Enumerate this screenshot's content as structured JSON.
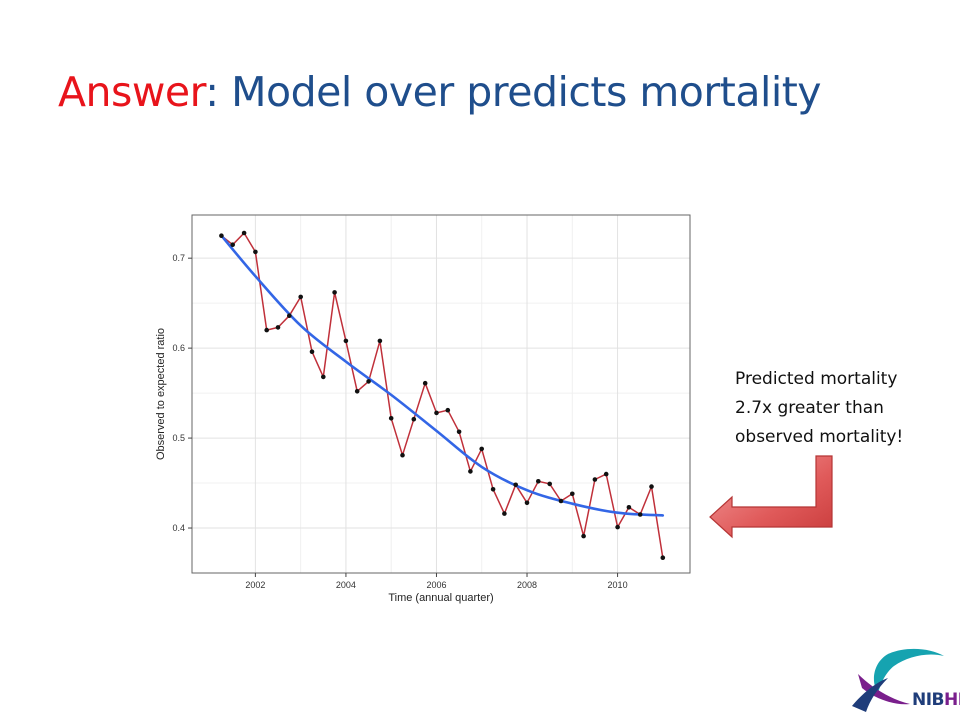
{
  "title": {
    "answer": "Answer",
    "rest": ": Model over predicts mortality"
  },
  "callout": {
    "lines": [
      "Predicted mortality",
      "2.7x greater than",
      "observed mortality!"
    ]
  },
  "logo": {
    "nib": "NIB",
    "hi": "HI"
  },
  "colors": {
    "title_answer": "#e8141b",
    "title_rest": "#1f4e8c",
    "series_line": "#c0303a",
    "points": "#111111",
    "trend": "#3366e6",
    "arrow": "#e05a5a"
  },
  "icons": {
    "callout_arrow": "bent-arrow-left-icon",
    "logo": "nibhi-swoosh-icon"
  },
  "chart_data": {
    "type": "line",
    "xlabel": "Time (annual quarter)",
    "ylabel": "Observed to expected ratio",
    "xlim": [
      2000.6,
      2011.6
    ],
    "ylim": [
      0.35,
      0.748
    ],
    "xticks": [
      2002,
      2004,
      2006,
      2008,
      2010
    ],
    "yticks": [
      0.4,
      0.5,
      0.6,
      0.7
    ],
    "grid": true,
    "series": [
      {
        "style": "line+points",
        "x": [
          2001.25,
          2001.5,
          2001.75,
          2002.0,
          2002.25,
          2002.5,
          2002.75,
          2003.0,
          2003.25,
          2003.5,
          2003.75,
          2004.0,
          2004.25,
          2004.5,
          2004.75,
          2005.0,
          2005.25,
          2005.5,
          2005.75,
          2006.0,
          2006.25,
          2006.5,
          2006.75,
          2007.0,
          2007.25,
          2007.5,
          2007.75,
          2008.0,
          2008.25,
          2008.5,
          2008.75,
          2009.0,
          2009.25,
          2009.5,
          2009.75,
          2010.0,
          2010.25,
          2010.5,
          2010.75,
          2011.0
        ],
        "y": [
          0.725,
          0.715,
          0.728,
          0.707,
          0.62,
          0.623,
          0.636,
          0.657,
          0.596,
          0.568,
          0.662,
          0.608,
          0.552,
          0.563,
          0.608,
          0.522,
          0.481,
          0.521,
          0.561,
          0.528,
          0.531,
          0.507,
          0.463,
          0.488,
          0.443,
          0.416,
          0.448,
          0.428,
          0.452,
          0.449,
          0.43,
          0.438,
          0.391,
          0.454,
          0.46,
          0.401,
          0.423,
          0.415,
          0.446,
          0.367
        ]
      },
      {
        "style": "smooth",
        "x": [
          2001.25,
          2002.0,
          2003.0,
          2004.0,
          2005.0,
          2006.0,
          2007.0,
          2008.0,
          2009.0,
          2010.0,
          2011.0
        ],
        "y": [
          0.725,
          0.68,
          0.625,
          0.585,
          0.548,
          0.508,
          0.468,
          0.442,
          0.427,
          0.417,
          0.414
        ]
      }
    ]
  }
}
